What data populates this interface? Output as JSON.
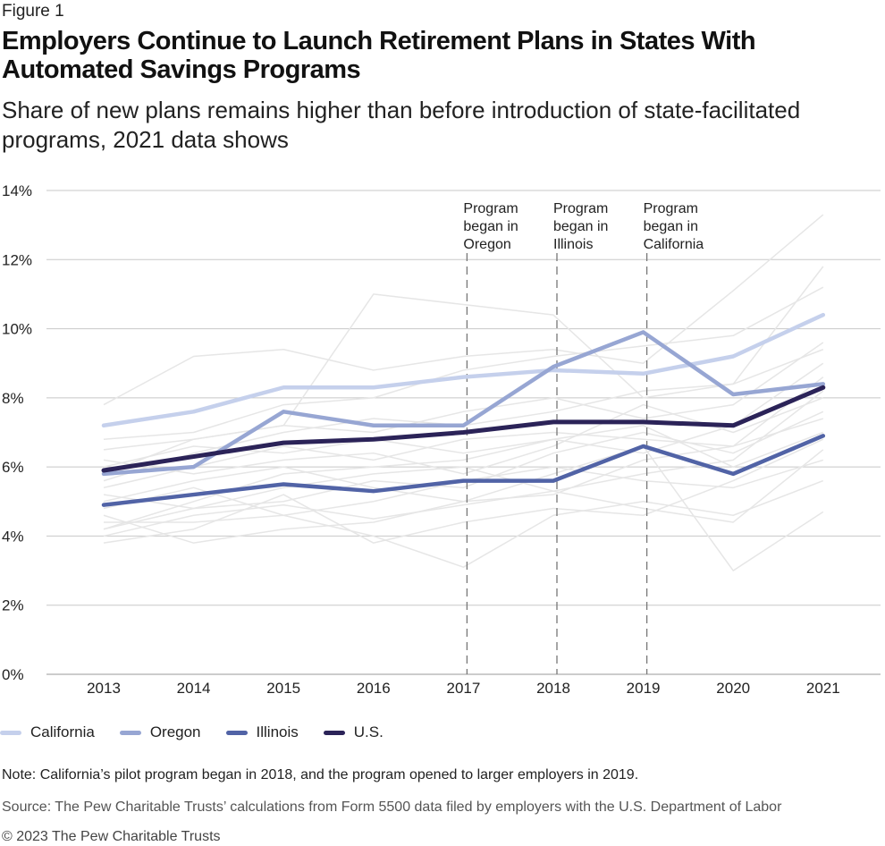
{
  "figure_label": "Figure 1",
  "title": "Employers Continue to Launch Retirement Plans in States With Automated Savings Programs",
  "subtitle": "Share of new plans remains higher than before introduction of state-facilitated programs, 2021 data shows",
  "note": "Note: California’s pilot program began in 2018, and the program opened to larger employers in 2019.",
  "source": "Source: The Pew Charitable Trusts’ calculations from Form 5500 data filed by employers with the U.S. Department of Labor",
  "copyright": "© 2023 The Pew Charitable Trusts",
  "colors": {
    "california": "#c5d0ec",
    "oregon": "#97a6d3",
    "illinois": "#5163a6",
    "us": "#2b2358",
    "background_states": "#e6e6e6",
    "grid": "#c8c8c8",
    "event_line": "#777777"
  },
  "chart_data": {
    "type": "line",
    "x": [
      "2013",
      "2014",
      "2015",
      "2016",
      "2017",
      "2018",
      "2019",
      "2020",
      "2021"
    ],
    "ylim": [
      0,
      14
    ],
    "yticks": [
      "0%",
      "2%",
      "4%",
      "6%",
      "8%",
      "10%",
      "12%",
      "14%"
    ],
    "ytick_values": [
      0,
      2,
      4,
      6,
      8,
      10,
      12,
      14
    ],
    "grid": "horizontal",
    "legend_position": "bottom-left",
    "series": [
      {
        "name": "California",
        "key": "california",
        "values": [
          7.2,
          7.6,
          8.3,
          8.3,
          8.6,
          8.8,
          8.7,
          9.2,
          10.4
        ]
      },
      {
        "name": "Oregon",
        "key": "oregon",
        "values": [
          5.8,
          6.0,
          7.6,
          7.2,
          7.2,
          8.9,
          9.9,
          8.1,
          8.4
        ]
      },
      {
        "name": "Illinois",
        "key": "illinois",
        "values": [
          4.9,
          5.2,
          5.5,
          5.3,
          5.6,
          5.6,
          6.6,
          5.8,
          6.9
        ]
      },
      {
        "name": "U.S.",
        "key": "us",
        "values": [
          5.9,
          6.3,
          6.7,
          6.8,
          7.0,
          7.3,
          7.3,
          7.2,
          8.3
        ]
      }
    ],
    "background_series": [
      [
        4.0,
        4.6,
        4.9,
        4.5,
        4.9,
        5.3,
        4.8,
        4.4,
        6.5
      ],
      [
        7.8,
        9.2,
        9.4,
        8.8,
        9.2,
        9.4,
        9.0,
        11.1,
        13.3
      ],
      [
        6.5,
        6.8,
        7.2,
        11.0,
        10.7,
        10.4,
        8.0,
        8.4,
        11.8
      ],
      [
        5.2,
        4.8,
        5.4,
        5.8,
        6.0,
        5.3,
        5.8,
        6.2,
        8.2
      ],
      [
        4.2,
        5.0,
        5.8,
        6.0,
        6.2,
        6.8,
        6.4,
        7.2,
        9.0
      ],
      [
        5.0,
        5.6,
        6.0,
        5.4,
        5.0,
        5.8,
        6.6,
        3.0,
        4.7
      ],
      [
        6.8,
        7.0,
        7.8,
        8.0,
        8.8,
        9.2,
        9.5,
        9.8,
        11.2
      ],
      [
        4.4,
        4.4,
        4.6,
        4.0,
        3.1,
        4.6,
        5.0,
        4.6,
        5.6
      ],
      [
        5.8,
        6.8,
        7.2,
        7.0,
        7.6,
        8.0,
        7.4,
        7.8,
        9.6
      ],
      [
        4.6,
        3.8,
        4.2,
        4.4,
        5.0,
        5.2,
        6.2,
        6.6,
        7.4
      ],
      [
        6.0,
        6.6,
        6.4,
        6.8,
        6.4,
        6.8,
        7.2,
        6.0,
        7.0
      ],
      [
        5.4,
        6.0,
        6.6,
        6.2,
        6.8,
        7.0,
        6.8,
        6.6,
        8.6
      ],
      [
        4.8,
        5.4,
        4.6,
        5.0,
        5.6,
        6.0,
        5.6,
        5.4,
        6.2
      ],
      [
        6.2,
        5.8,
        6.2,
        6.4,
        5.8,
        6.6,
        7.8,
        7.0,
        8.0
      ],
      [
        3.8,
        4.2,
        5.2,
        3.8,
        4.4,
        4.8,
        4.6,
        5.6,
        6.8
      ],
      [
        5.6,
        6.4,
        7.0,
        7.4,
        7.2,
        7.6,
        8.2,
        8.4,
        9.4
      ],
      [
        4.2,
        4.8,
        5.0,
        5.6,
        5.4,
        6.4,
        7.0,
        6.4,
        7.6
      ]
    ],
    "events": [
      {
        "year": "2017",
        "lines": [
          "Program",
          "began in",
          "Oregon"
        ]
      },
      {
        "year": "2018",
        "lines": [
          "Program",
          "began in",
          "Illinois"
        ]
      },
      {
        "year": "2019",
        "lines": [
          "Program",
          "began in",
          "California"
        ]
      }
    ]
  }
}
